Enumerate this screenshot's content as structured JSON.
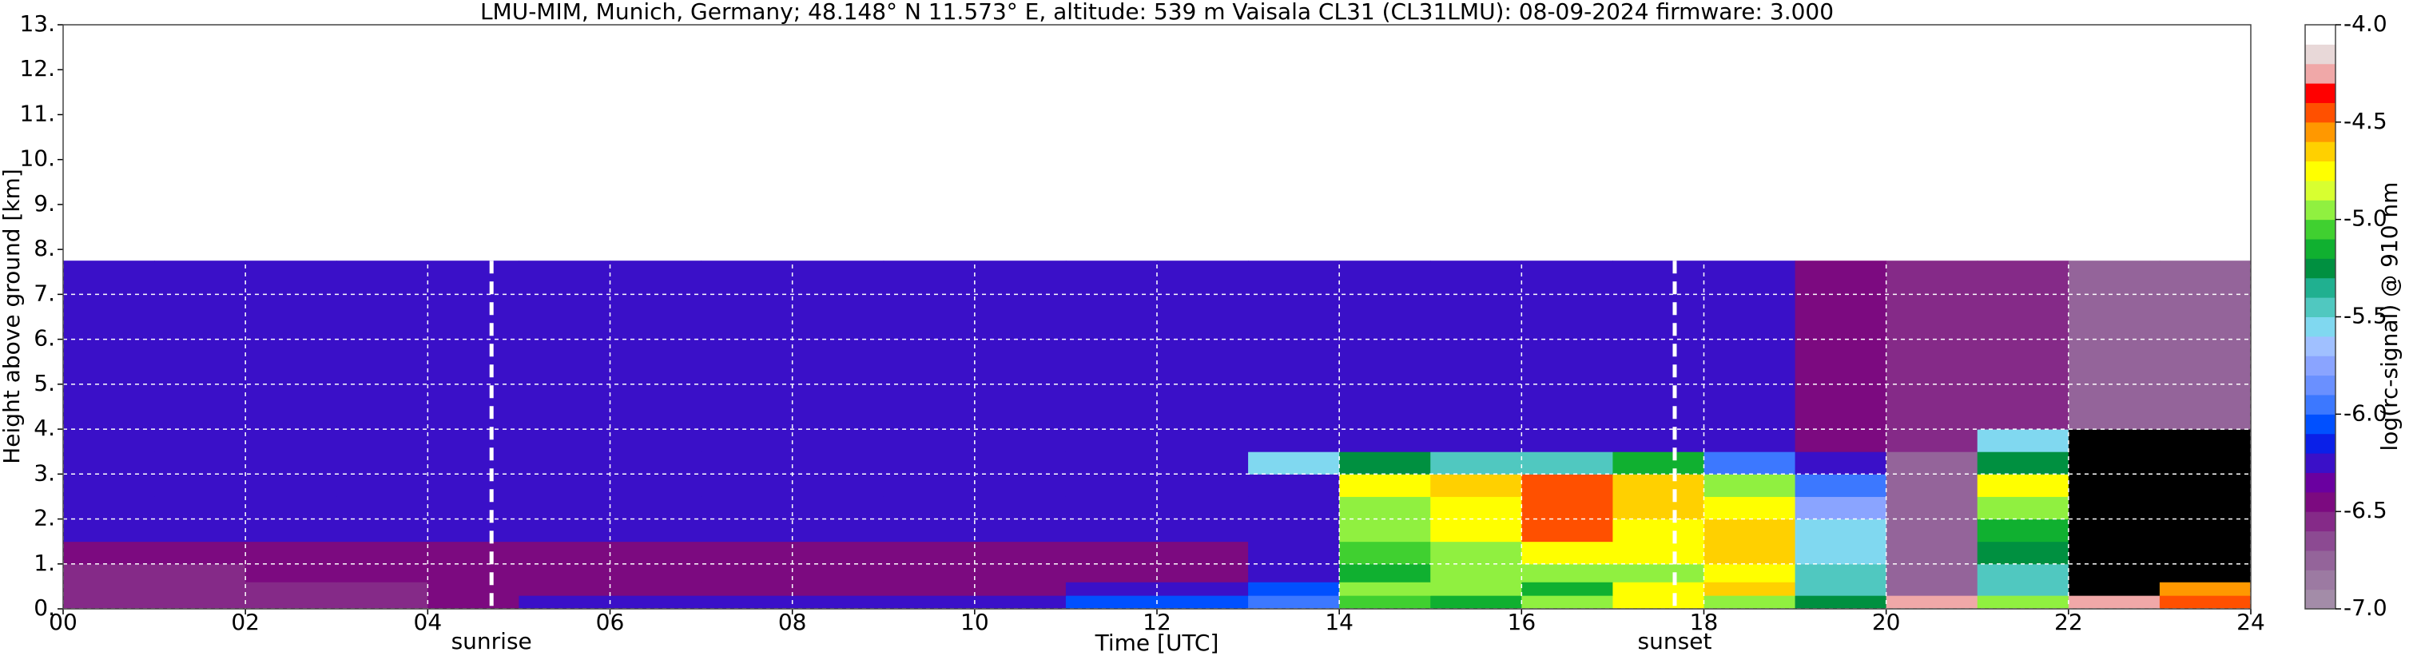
{
  "chart_data": {
    "type": "heatmap",
    "title": "LMU-MIM, Munich, Germany; 48.148° N 11.573° E, altitude: 539 m    Vaisala CL31 (CL31LMU): 08-09-2024    firmware: 3.000",
    "xlabel": "Time [UTC]",
    "ylabel": "Height above ground [km]",
    "colorbar_label": "log(rc-signal) @ 910 nm",
    "xlim": [
      0,
      24
    ],
    "xticks": [
      {
        "value": 0,
        "label": "00"
      },
      {
        "value": 2,
        "label": "02"
      },
      {
        "value": 4,
        "label": "04"
      },
      {
        "value": 6,
        "label": "06"
      },
      {
        "value": 8,
        "label": "08"
      },
      {
        "value": 10,
        "label": "10"
      },
      {
        "value": 12,
        "label": "12"
      },
      {
        "value": 14,
        "label": "14"
      },
      {
        "value": 16,
        "label": "16"
      },
      {
        "value": 18,
        "label": "18"
      },
      {
        "value": 20,
        "label": "20"
      },
      {
        "value": 22,
        "label": "22"
      },
      {
        "value": 24,
        "label": "24"
      }
    ],
    "ylim": [
      0,
      13
    ],
    "yticks": [
      {
        "value": 0,
        "label": "0."
      },
      {
        "value": 1,
        "label": "1."
      },
      {
        "value": 2,
        "label": "2."
      },
      {
        "value": 3,
        "label": "3."
      },
      {
        "value": 4,
        "label": "4."
      },
      {
        "value": 5,
        "label": "5."
      },
      {
        "value": 6,
        "label": "6."
      },
      {
        "value": 7,
        "label": "7."
      },
      {
        "value": 8,
        "label": "8."
      },
      {
        "value": 9,
        "label": "9."
      },
      {
        "value": 10,
        "label": "10."
      },
      {
        "value": 11,
        "label": "11."
      },
      {
        "value": 12,
        "label": "12."
      },
      {
        "value": 13,
        "label": "13."
      }
    ],
    "grid": true,
    "clim": [
      -7,
      -4
    ],
    "cticks": [
      {
        "value": -7,
        "label": "-7.0"
      },
      {
        "value": -6.5,
        "label": "-6.5"
      },
      {
        "value": -6,
        "label": "-6.0"
      },
      {
        "value": -5.5,
        "label": "-5.5"
      },
      {
        "value": -5,
        "label": "-5.0"
      },
      {
        "value": -4.5,
        "label": "-4.5"
      },
      {
        "value": -4,
        "label": "-4.0"
      }
    ],
    "colorscale": [
      "#a38ca8",
      "#9c7aa2",
      "#94649a",
      "#8c4a92",
      "#852a88",
      "#7c0a80",
      "#6a00a0",
      "#3a10c8",
      "#0a20e8",
      "#0050ff",
      "#3c78ff",
      "#6a90ff",
      "#8aa4ff",
      "#a0c0ff",
      "#80d8f0",
      "#50c8c0",
      "#20b090",
      "#009040",
      "#10b030",
      "#40d030",
      "#90f040",
      "#d8ff30",
      "#ffff00",
      "#ffd000",
      "#ff9800",
      "#ff5000",
      "#ff0000",
      "#f0a8a8",
      "#e8d8d8",
      "#ffffff"
    ],
    "under_color": "#000000",
    "xbins": [
      0,
      1,
      2,
      3,
      4,
      5,
      6,
      7,
      8,
      9,
      10,
      11,
      12,
      13,
      14,
      15,
      16,
      17,
      18,
      19,
      20,
      21,
      22,
      23,
      24
    ],
    "ybins": [
      0,
      0.3,
      0.6,
      1,
      1.5,
      2,
      2.5,
      3,
      3.5,
      4,
      7.75,
      13
    ],
    "z": [
      [
        -6.6,
        -6.6,
        -6.6,
        -6.6,
        -6.5,
        -6.2,
        -6.2,
        -6.2,
        -6.2,
        -6.2,
        -6.2,
        -6.1,
        -6.1,
        -6.0,
        -5.1,
        -5.2,
        -5.0,
        -4.8,
        -4.9,
        -5.3,
        -4.3,
        -5.0,
        -4.3,
        -4.5
      ],
      [
        -6.6,
        -6.6,
        -6.6,
        -6.6,
        -6.5,
        -6.4,
        -6.4,
        -6.4,
        -6.4,
        -6.4,
        -6.4,
        -6.3,
        -6.3,
        -6.1,
        -5.0,
        -4.9,
        -5.2,
        -4.8,
        -4.7,
        -5.4,
        -6.8,
        -5.4,
        -7.2,
        -4.6
      ],
      [
        -6.6,
        -6.6,
        -6.5,
        -6.5,
        -6.5,
        -6.5,
        -6.5,
        -6.5,
        -6.5,
        -6.5,
        -6.5,
        -6.5,
        -6.5,
        -6.3,
        -5.2,
        -4.9,
        -5.0,
        -4.9,
        -4.8,
        -5.5,
        -6.8,
        -5.5,
        -7.2,
        -7.2
      ],
      [
        -6.4,
        -6.4,
        -6.4,
        -6.4,
        -6.4,
        -6.4,
        -6.4,
        -6.4,
        -6.4,
        -6.4,
        -6.4,
        -6.4,
        -6.4,
        -6.3,
        -5.1,
        -4.9,
        -4.8,
        -4.8,
        -4.7,
        -5.6,
        -6.8,
        -5.3,
        -7.2,
        -7.2
      ],
      [
        -6.3,
        -6.3,
        -6.3,
        -6.3,
        -6.3,
        -6.3,
        -6.3,
        -6.3,
        -6.3,
        -6.3,
        -6.3,
        -6.3,
        -6.3,
        -6.3,
        -5.0,
        -4.8,
        -4.4,
        -4.8,
        -4.7,
        -5.6,
        -6.8,
        -5.2,
        -7.2,
        -7.2
      ],
      [
        -6.3,
        -6.3,
        -6.3,
        -6.3,
        -6.3,
        -6.3,
        -6.3,
        -6.3,
        -6.3,
        -6.3,
        -6.3,
        -6.3,
        -6.3,
        -6.3,
        -4.9,
        -4.8,
        -4.4,
        -4.7,
        -4.8,
        -5.8,
        -6.8,
        -5.0,
        -7.2,
        -7.2
      ],
      [
        -6.3,
        -6.3,
        -6.3,
        -6.3,
        -6.3,
        -6.3,
        -6.3,
        -6.3,
        -6.3,
        -6.3,
        -6.3,
        -6.3,
        -6.3,
        -6.3,
        -4.8,
        -4.7,
        -4.4,
        -4.7,
        -4.9,
        -6.0,
        -6.8,
        -4.8,
        -7.2,
        -7.2
      ],
      [
        -6.3,
        -6.3,
        -6.3,
        -6.3,
        -6.3,
        -6.3,
        -6.3,
        -6.3,
        -6.3,
        -6.3,
        -6.3,
        -6.3,
        -6.3,
        -5.6,
        -5.3,
        -5.4,
        -5.5,
        -5.2,
        -6.0,
        -6.3,
        -6.8,
        -5.3,
        -7.2,
        -7.2
      ],
      [
        -6.3,
        -6.3,
        -6.3,
        -6.3,
        -6.3,
        -6.3,
        -6.3,
        -6.3,
        -6.3,
        -6.3,
        -6.3,
        -6.3,
        -6.3,
        -6.2,
        -6.3,
        -6.3,
        -6.3,
        -6.3,
        -6.3,
        -6.4,
        -6.6,
        -5.6,
        -7.2,
        -7.2
      ],
      [
        -6.3,
        -6.3,
        -6.3,
        -6.3,
        -6.3,
        -6.3,
        -6.3,
        -6.3,
        -6.3,
        -6.3,
        -6.3,
        -6.3,
        -6.3,
        -6.3,
        -6.3,
        -6.3,
        -6.3,
        -6.3,
        -6.3,
        -6.5,
        -6.6,
        -6.6,
        -6.8,
        -6.8
      ],
      [
        null,
        null,
        null,
        null,
        null,
        null,
        null,
        null,
        null,
        null,
        null,
        null,
        null,
        null,
        null,
        null,
        null,
        null,
        null,
        null,
        null,
        null,
        null,
        null
      ]
    ],
    "annotations": [
      {
        "text": "sunrise",
        "x": 4.7
      },
      {
        "text": "sunset",
        "x": 17.68
      }
    ]
  }
}
